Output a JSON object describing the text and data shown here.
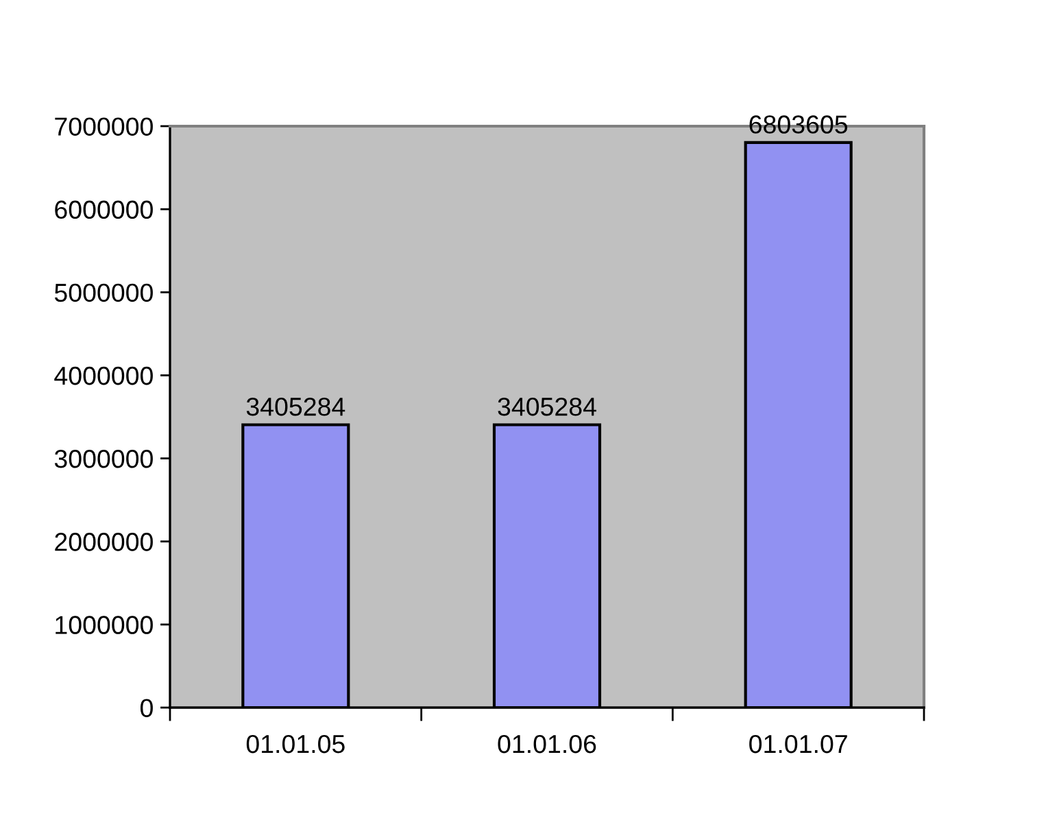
{
  "chart_data": {
    "type": "bar",
    "categories": [
      "01.01.05",
      "01.01.06",
      "01.01.07"
    ],
    "values": [
      3405284,
      3405284,
      6803605
    ],
    "color": "#9191f2",
    "ylim": [
      0,
      7000000
    ],
    "yticks": [
      0,
      1000000,
      2000000,
      3000000,
      4000000,
      5000000,
      6000000,
      7000000
    ],
    "data_labels": true,
    "grid": false
  }
}
